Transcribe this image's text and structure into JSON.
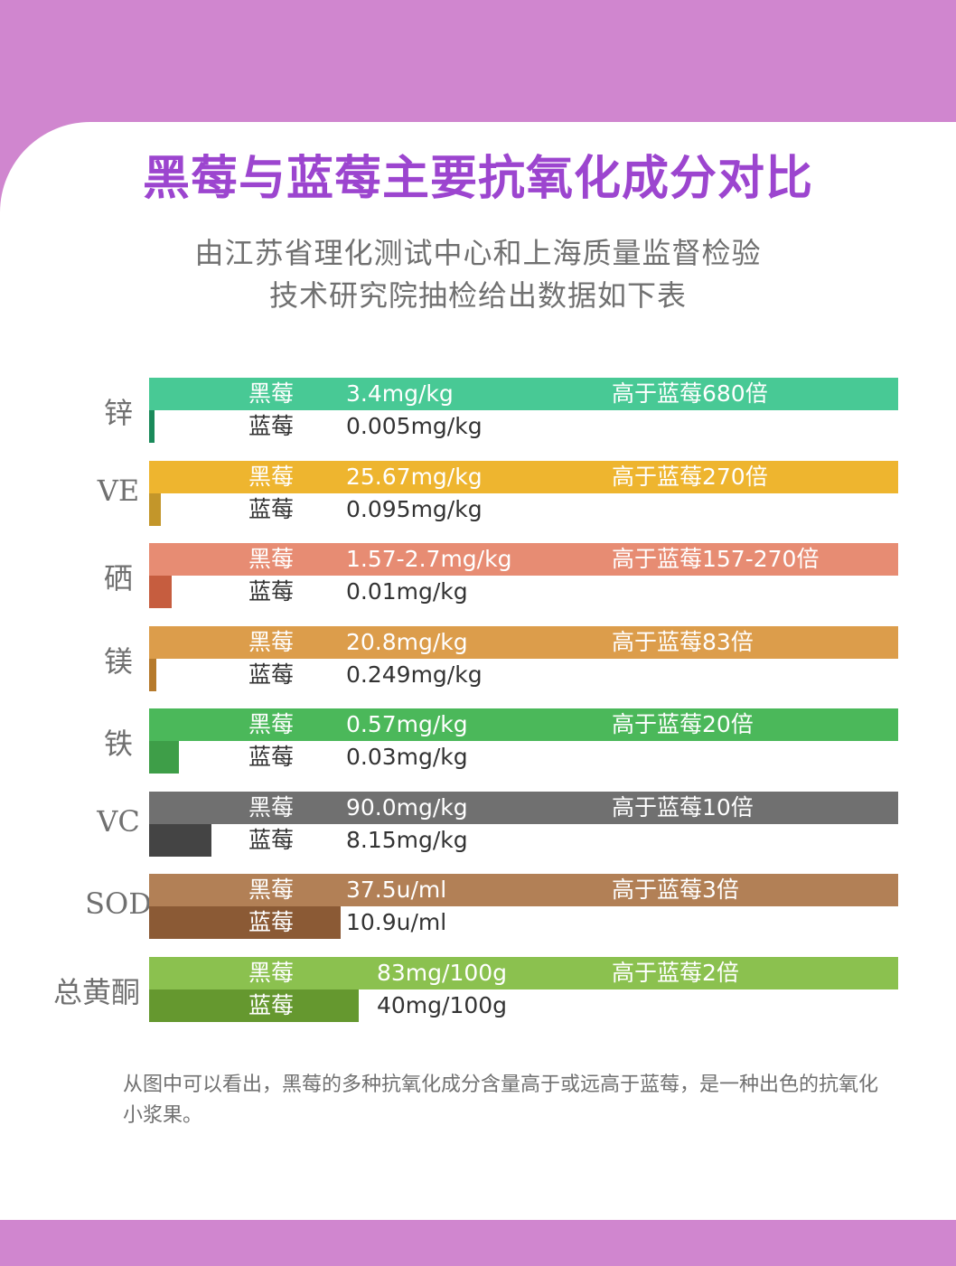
{
  "title": "黑莓与蓝莓主要抗氧化成分对比",
  "subtitle_lines": [
    "由江苏省理化测试中心和上海质量监督检验",
    "技术研究院抽检给出数据如下表"
  ],
  "footnote": "从图中可以看出，黑莓的多种抗氧化成分含量高于或远高于蓝莓，是一种出色的抗氧化小浆果。",
  "chart_data": {
    "type": "bar",
    "orientation": "horizontal",
    "series_names": [
      "黑莓",
      "蓝莓"
    ],
    "categories": [
      {
        "label": "锌",
        "blackberry": "3.4mg/kg",
        "blueberry": "0.005mg/kg",
        "ratio": "高于蓝莓680倍",
        "blueberry_fraction": 0.006,
        "color_black": "#48c995",
        "color_blue": "#1a8a5a"
      },
      {
        "label": "VE",
        "blackberry": "25.67mg/kg",
        "blueberry": "0.095mg/kg",
        "ratio": "高于蓝莓270倍",
        "blueberry_fraction": 0.016,
        "color_black": "#eeb52f",
        "color_blue": "#c3962a"
      },
      {
        "label": "硒",
        "blackberry": "1.57-2.7mg/kg",
        "blueberry": "0.01mg/kg",
        "ratio": "高于蓝莓157-270倍",
        "blueberry_fraction": 0.03,
        "color_black": "#e78c73",
        "color_blue": "#c65d3f"
      },
      {
        "label": "镁",
        "blackberry": "20.8mg/kg",
        "blueberry": "0.249mg/kg",
        "ratio": "高于蓝莓83倍",
        "blueberry_fraction": 0.01,
        "color_black": "#dc9d4b",
        "color_blue": "#b67a2c"
      },
      {
        "label": "铁",
        "blackberry": "0.57mg/kg",
        "blueberry": "0.03mg/kg",
        "ratio": "高于蓝莓20倍",
        "blueberry_fraction": 0.04,
        "color_black": "#4bb85a",
        "color_blue": "#3e9e48"
      },
      {
        "label": "VC",
        "blackberry": "90.0mg/kg",
        "blueberry": "8.15mg/kg",
        "ratio": "高于蓝莓10倍",
        "blueberry_fraction": 0.083,
        "color_black": "#707070",
        "color_blue": "#444444"
      },
      {
        "label": "SOD",
        "blackberry": "37.5u/ml",
        "blueberry": "10.9u/ml",
        "ratio": "高于蓝莓3倍",
        "blueberry_fraction": 0.256,
        "color_black": "#b28056",
        "color_blue": "#8b5a35"
      },
      {
        "label": "总黄酮",
        "blackberry": "83mg/100g",
        "blueberry": "40mg/100g",
        "ratio": "高于蓝莓2倍",
        "blueberry_fraction": 0.28,
        "color_black": "#8bc14f",
        "color_blue": "#65982f"
      }
    ]
  }
}
